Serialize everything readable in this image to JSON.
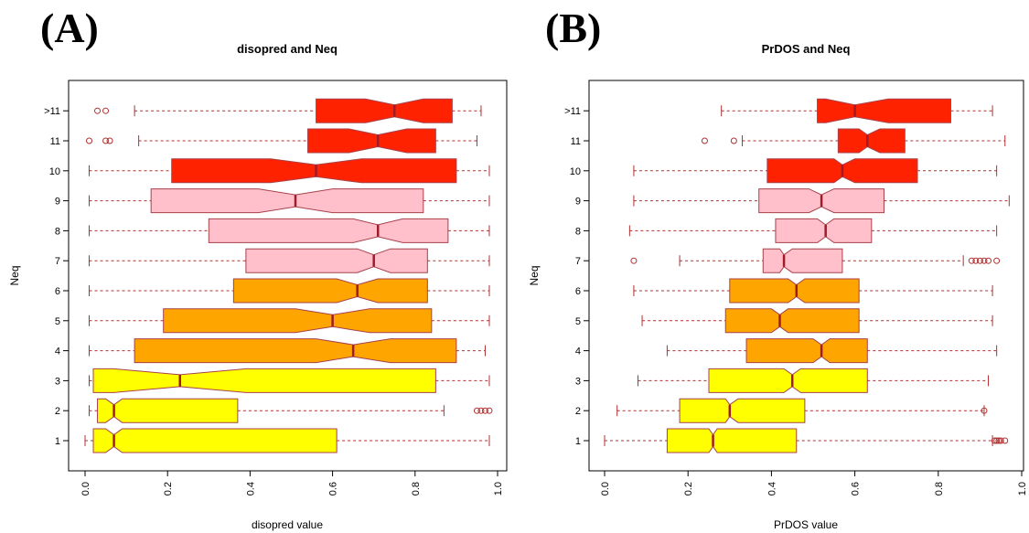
{
  "panel_labels": [
    "(A)",
    "(B)"
  ],
  "colors": {
    "red": "#ff2200",
    "pink": "#ffc0cb",
    "orange": "#ffa500",
    "yellow": "#ffff00",
    "border": "#a8414a",
    "median": "#a01a2a",
    "whisker": "#b03030",
    "outlier": "#b03030"
  },
  "chart_data": [
    {
      "type": "boxplot",
      "orientation": "horizontal",
      "title": "disopred and Neq",
      "xlabel": "disopred value",
      "ylabel": "Neq",
      "xlim": [
        0.0,
        1.0
      ],
      "xticks": [
        "0.0",
        "0.2",
        "0.4",
        "0.6",
        "0.8",
        "1.0"
      ],
      "grid": false,
      "categories": [
        "1",
        "2",
        "3",
        "4",
        "5",
        "6",
        "7",
        "8",
        "9",
        "10",
        "11",
        ">11"
      ],
      "series": [
        {
          "category": "1",
          "color": "yellow",
          "whisker_low": 0.0,
          "q1": 0.02,
          "median": 0.07,
          "q3": 0.61,
          "whisker_high": 0.98,
          "notch_low": 0.05,
          "notch_high": 0.09,
          "outliers": []
        },
        {
          "category": "2",
          "color": "yellow",
          "whisker_low": 0.01,
          "q1": 0.03,
          "median": 0.07,
          "q3": 0.37,
          "whisker_high": 0.87,
          "notch_low": 0.05,
          "notch_high": 0.09,
          "outliers": [
            0.95,
            0.96,
            0.97,
            0.98
          ]
        },
        {
          "category": "3",
          "color": "yellow",
          "whisker_low": 0.01,
          "q1": 0.02,
          "median": 0.23,
          "q3": 0.85,
          "whisker_high": 0.98,
          "notch_low": 0.07,
          "notch_high": 0.39,
          "outliers": []
        },
        {
          "category": "4",
          "color": "orange",
          "whisker_low": 0.01,
          "q1": 0.12,
          "median": 0.65,
          "q3": 0.9,
          "whisker_high": 0.97,
          "notch_low": 0.56,
          "notch_high": 0.74,
          "outliers": []
        },
        {
          "category": "5",
          "color": "orange",
          "whisker_low": 0.01,
          "q1": 0.19,
          "median": 0.6,
          "q3": 0.84,
          "whisker_high": 0.98,
          "notch_low": 0.51,
          "notch_high": 0.69,
          "outliers": []
        },
        {
          "category": "6",
          "color": "orange",
          "whisker_low": 0.01,
          "q1": 0.36,
          "median": 0.66,
          "q3": 0.83,
          "whisker_high": 0.98,
          "notch_low": 0.61,
          "notch_high": 0.71,
          "outliers": []
        },
        {
          "category": "7",
          "color": "pink",
          "whisker_low": 0.01,
          "q1": 0.39,
          "median": 0.7,
          "q3": 0.83,
          "whisker_high": 0.98,
          "notch_low": 0.66,
          "notch_high": 0.74,
          "outliers": []
        },
        {
          "category": "8",
          "color": "pink",
          "whisker_low": 0.01,
          "q1": 0.3,
          "median": 0.71,
          "q3": 0.88,
          "whisker_high": 0.98,
          "notch_low": 0.65,
          "notch_high": 0.77,
          "outliers": []
        },
        {
          "category": "9",
          "color": "pink",
          "whisker_low": 0.01,
          "q1": 0.16,
          "median": 0.51,
          "q3": 0.82,
          "whisker_high": 0.98,
          "notch_low": 0.42,
          "notch_high": 0.6,
          "outliers": []
        },
        {
          "category": "10",
          "color": "red",
          "whisker_low": 0.01,
          "q1": 0.21,
          "median": 0.56,
          "q3": 0.9,
          "whisker_high": 0.98,
          "notch_low": 0.45,
          "notch_high": 0.67,
          "outliers": []
        },
        {
          "category": "11",
          "color": "red",
          "whisker_low": 0.13,
          "q1": 0.54,
          "median": 0.71,
          "q3": 0.85,
          "whisker_high": 0.95,
          "notch_low": 0.64,
          "notch_high": 0.78,
          "outliers": [
            0.01,
            0.05,
            0.06
          ]
        },
        {
          "category": ">11",
          "color": "red",
          "whisker_low": 0.12,
          "q1": 0.56,
          "median": 0.75,
          "q3": 0.89,
          "whisker_high": 0.96,
          "notch_low": 0.68,
          "notch_high": 0.82,
          "outliers": [
            0.03,
            0.05
          ]
        }
      ]
    },
    {
      "type": "boxplot",
      "orientation": "horizontal",
      "title": "PrDOS and Neq",
      "xlabel": "PrDOS value",
      "ylabel": "Neq",
      "xlim": [
        0.0,
        1.0
      ],
      "xticks": [
        "0.0",
        "0.2",
        "0.4",
        "0.6",
        "0.8",
        "1.0"
      ],
      "grid": false,
      "categories": [
        "1",
        "2",
        "3",
        "4",
        "5",
        "6",
        "7",
        "8",
        "9",
        "10",
        "11",
        ">11"
      ],
      "series": [
        {
          "category": "1",
          "color": "yellow",
          "whisker_low": 0.0,
          "q1": 0.15,
          "median": 0.26,
          "q3": 0.46,
          "whisker_high": 0.93,
          "notch_low": 0.25,
          "notch_high": 0.27,
          "outliers": [
            0.935,
            0.94,
            0.945,
            0.95,
            0.96
          ]
        },
        {
          "category": "2",
          "color": "yellow",
          "whisker_low": 0.03,
          "q1": 0.18,
          "median": 0.3,
          "q3": 0.48,
          "whisker_high": 0.91,
          "notch_low": 0.29,
          "notch_high": 0.32,
          "outliers": [
            0.91
          ]
        },
        {
          "category": "3",
          "color": "yellow",
          "whisker_low": 0.08,
          "q1": 0.25,
          "median": 0.45,
          "q3": 0.63,
          "whisker_high": 0.92,
          "notch_low": 0.43,
          "notch_high": 0.47,
          "outliers": []
        },
        {
          "category": "4",
          "color": "orange",
          "whisker_low": 0.15,
          "q1": 0.34,
          "median": 0.52,
          "q3": 0.63,
          "whisker_high": 0.94,
          "notch_low": 0.5,
          "notch_high": 0.54,
          "outliers": []
        },
        {
          "category": "5",
          "color": "orange",
          "whisker_low": 0.09,
          "q1": 0.29,
          "median": 0.42,
          "q3": 0.61,
          "whisker_high": 0.93,
          "notch_low": 0.4,
          "notch_high": 0.44,
          "outliers": []
        },
        {
          "category": "6",
          "color": "orange",
          "whisker_low": 0.07,
          "q1": 0.3,
          "median": 0.46,
          "q3": 0.61,
          "whisker_high": 0.93,
          "notch_low": 0.44,
          "notch_high": 0.48,
          "outliers": []
        },
        {
          "category": "7",
          "color": "pink",
          "whisker_low": 0.18,
          "q1": 0.38,
          "median": 0.43,
          "q3": 0.57,
          "whisker_high": 0.86,
          "notch_low": 0.42,
          "notch_high": 0.45,
          "outliers": [
            0.07,
            0.88,
            0.89,
            0.9,
            0.91,
            0.92,
            0.94
          ]
        },
        {
          "category": "8",
          "color": "pink",
          "whisker_low": 0.06,
          "q1": 0.41,
          "median": 0.53,
          "q3": 0.64,
          "whisker_high": 0.94,
          "notch_low": 0.51,
          "notch_high": 0.55,
          "outliers": []
        },
        {
          "category": "9",
          "color": "pink",
          "whisker_low": 0.07,
          "q1": 0.37,
          "median": 0.52,
          "q3": 0.67,
          "whisker_high": 0.97,
          "notch_low": 0.49,
          "notch_high": 0.55,
          "outliers": []
        },
        {
          "category": "10",
          "color": "red",
          "whisker_low": 0.07,
          "q1": 0.39,
          "median": 0.57,
          "q3": 0.75,
          "whisker_high": 0.94,
          "notch_low": 0.55,
          "notch_high": 0.6,
          "outliers": []
        },
        {
          "category": "11",
          "color": "red",
          "whisker_low": 0.33,
          "q1": 0.56,
          "median": 0.63,
          "q3": 0.72,
          "whisker_high": 0.96,
          "notch_low": 0.61,
          "notch_high": 0.66,
          "outliers": [
            0.24,
            0.31
          ]
        },
        {
          "category": ">11",
          "color": "red",
          "whisker_low": 0.28,
          "q1": 0.51,
          "median": 0.6,
          "q3": 0.83,
          "whisker_high": 0.93,
          "notch_low": 0.53,
          "notch_high": 0.68,
          "outliers": []
        }
      ]
    }
  ]
}
